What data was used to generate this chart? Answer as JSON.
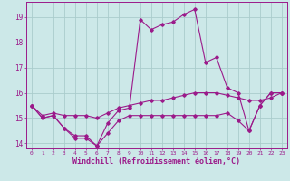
{
  "xlabel": "Windchill (Refroidissement éolien,°C)",
  "x": [
    0,
    1,
    2,
    3,
    4,
    5,
    6,
    7,
    8,
    9,
    10,
    11,
    12,
    13,
    14,
    15,
    16,
    17,
    18,
    19,
    20,
    21,
    22,
    23
  ],
  "line1": [
    15.5,
    15.0,
    15.1,
    14.6,
    14.3,
    14.3,
    13.9,
    14.4,
    14.9,
    15.1,
    15.1,
    15.1,
    15.1,
    15.1,
    15.1,
    15.1,
    15.1,
    15.1,
    15.2,
    14.9,
    14.5,
    15.5,
    16.0,
    16.0
  ],
  "line2": [
    15.5,
    15.0,
    15.1,
    14.6,
    14.2,
    14.2,
    13.9,
    14.8,
    15.3,
    15.4,
    18.9,
    18.5,
    18.7,
    18.8,
    19.1,
    19.3,
    17.2,
    17.4,
    16.2,
    16.0,
    14.5,
    15.5,
    16.0,
    16.0
  ],
  "line3": [
    15.5,
    15.1,
    15.2,
    15.1,
    15.1,
    15.1,
    15.0,
    15.2,
    15.4,
    15.5,
    15.6,
    15.7,
    15.7,
    15.8,
    15.9,
    16.0,
    16.0,
    16.0,
    15.9,
    15.8,
    15.7,
    15.7,
    15.8,
    16.0
  ],
  "line_color": "#9b1a8a",
  "bg_color": "#cce8e8",
  "grid_color": "#aacccc",
  "ylim": [
    13.8,
    19.6
  ],
  "xlim": [
    -0.5,
    23.5
  ],
  "yticks": [
    14,
    15,
    16,
    17,
    18,
    19
  ],
  "xticks": [
    0,
    1,
    2,
    3,
    4,
    5,
    6,
    7,
    8,
    9,
    10,
    11,
    12,
    13,
    14,
    15,
    16,
    17,
    18,
    19,
    20,
    21,
    22,
    23
  ],
  "tick_color": "#9b1a8a",
  "tick_fontsize": 5.5,
  "xlabel_fontsize": 6.0,
  "marker": "D",
  "markersize": 1.8,
  "linewidth": 0.8
}
